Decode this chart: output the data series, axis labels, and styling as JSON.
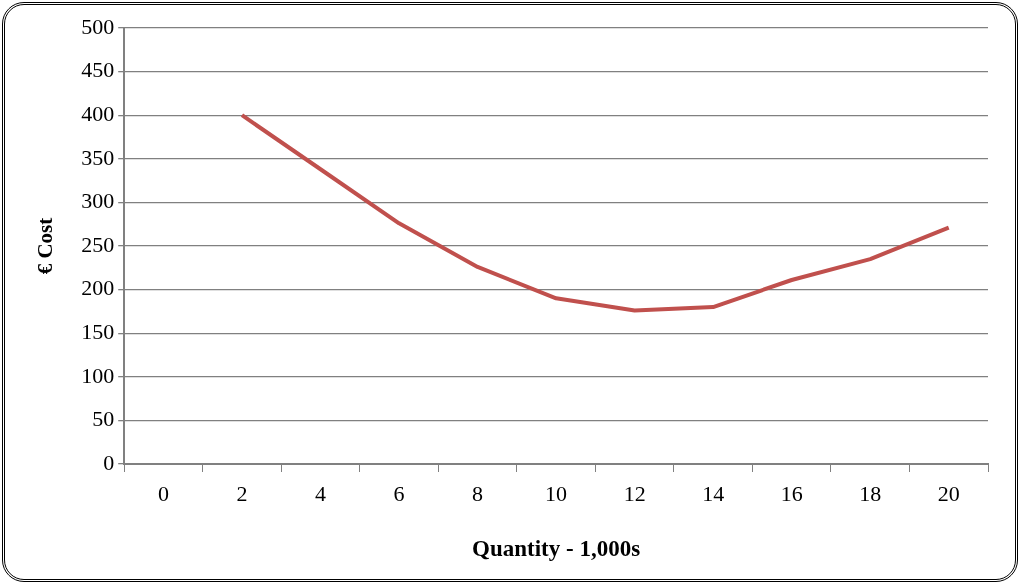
{
  "chart_data": {
    "type": "line",
    "xlabel": "Quantity - 1,000s",
    "ylabel": "€ Cost",
    "categories": [
      "0",
      "2",
      "4",
      "6",
      "8",
      "10",
      "12",
      "14",
      "16",
      "18",
      "20"
    ],
    "series": [
      {
        "color": "#c0504d",
        "values": [
          null,
          400,
          338,
          276,
          226,
          190,
          176,
          180,
          211,
          235,
          271
        ]
      }
    ],
    "ylim": [
      0,
      500
    ],
    "yticks": [
      0,
      50,
      100,
      150,
      200,
      250,
      300,
      350,
      400,
      450,
      500
    ],
    "grid": "y",
    "legend": false,
    "marker": "none",
    "line_style": "solid"
  }
}
